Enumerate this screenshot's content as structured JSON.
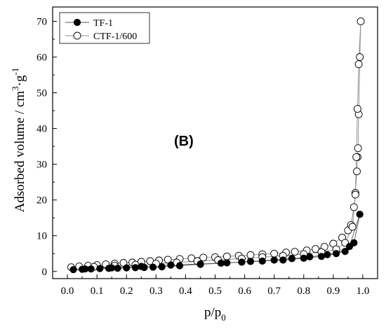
{
  "chart_data": {
    "type": "scatter",
    "x_label": {
      "main": "p/p",
      "sub": "0"
    },
    "y_label": {
      "main": "Adsorbed volume / cm",
      "sup1": "3",
      "mid": "·g",
      "sup2": "-1"
    },
    "annotation": "(B)",
    "xlim": [
      -0.05,
      1.05
    ],
    "ylim": [
      -2,
      74
    ],
    "x_ticks": [
      "0.0",
      "0.1",
      "0.2",
      "0.3",
      "0.4",
      "0.5",
      "0.6",
      "0.7",
      "0.8",
      "0.9",
      "1.0"
    ],
    "y_ticks": [
      "0",
      "10",
      "20",
      "30",
      "40",
      "50",
      "60",
      "70"
    ],
    "legend_position": "top-left",
    "series": [
      {
        "name": "TF-1",
        "marker": "filled-circle",
        "color": "#000000",
        "line_color": "#555555",
        "x": [
          0.02,
          0.05,
          0.08,
          0.11,
          0.14,
          0.17,
          0.2,
          0.23,
          0.26,
          0.29,
          0.32,
          0.38,
          0.45,
          0.52,
          0.59,
          0.66,
          0.73,
          0.8,
          0.86,
          0.91,
          0.955,
          0.99,
          0.97,
          0.94,
          0.88,
          0.82,
          0.76,
          0.7,
          0.62,
          0.54,
          0.45,
          0.35,
          0.25,
          0.15,
          0.06
        ],
        "y": [
          0.5,
          0.6,
          0.7,
          0.8,
          0.85,
          0.9,
          1.0,
          1.05,
          1.1,
          1.2,
          1.3,
          1.6,
          2.0,
          2.3,
          2.6,
          2.9,
          3.2,
          3.7,
          4.2,
          5.0,
          7.0,
          16.0,
          8.0,
          5.6,
          4.7,
          4.1,
          3.6,
          3.2,
          2.8,
          2.4,
          2.1,
          1.8,
          1.4,
          1.0,
          0.7
        ]
      },
      {
        "name": "CTF-1/600",
        "marker": "open-circle",
        "color": "#ffffff",
        "line_color": "#8a8a8a",
        "x": [
          0.013,
          0.04,
          0.07,
          0.1,
          0.13,
          0.16,
          0.19,
          0.22,
          0.25,
          0.28,
          0.31,
          0.34,
          0.38,
          0.42,
          0.46,
          0.5,
          0.54,
          0.58,
          0.62,
          0.66,
          0.7,
          0.74,
          0.77,
          0.81,
          0.84,
          0.87,
          0.9,
          0.93,
          0.95,
          0.96,
          0.97,
          0.975,
          0.98,
          0.982,
          0.984,
          0.986,
          0.99,
          0.993,
          0.986,
          0.982,
          0.978,
          0.975,
          0.965,
          0.94,
          0.91,
          0.86,
          0.8,
          0.73,
          0.66,
          0.59,
          0.51,
          0.44,
          0.37,
          0.3,
          0.23,
          0.16,
          0.09
        ],
        "y": [
          1.2,
          1.4,
          1.6,
          1.8,
          2.0,
          2.2,
          2.4,
          2.5,
          2.7,
          2.9,
          3.1,
          3.3,
          3.5,
          3.7,
          3.9,
          4.0,
          4.2,
          4.4,
          4.6,
          4.8,
          5.0,
          5.3,
          5.5,
          5.9,
          6.3,
          6.9,
          7.8,
          9.5,
          11.5,
          13.0,
          18.0,
          22.0,
          28.0,
          32.0,
          34.5,
          44.0,
          60.0,
          70.0,
          58.0,
          45.5,
          32.0,
          21.5,
          12.5,
          8.0,
          6.2,
          5.4,
          4.9,
          4.4,
          4.0,
          3.6,
          3.2,
          2.9,
          2.5,
          2.2,
          1.9,
          1.6,
          1.3
        ]
      }
    ]
  }
}
